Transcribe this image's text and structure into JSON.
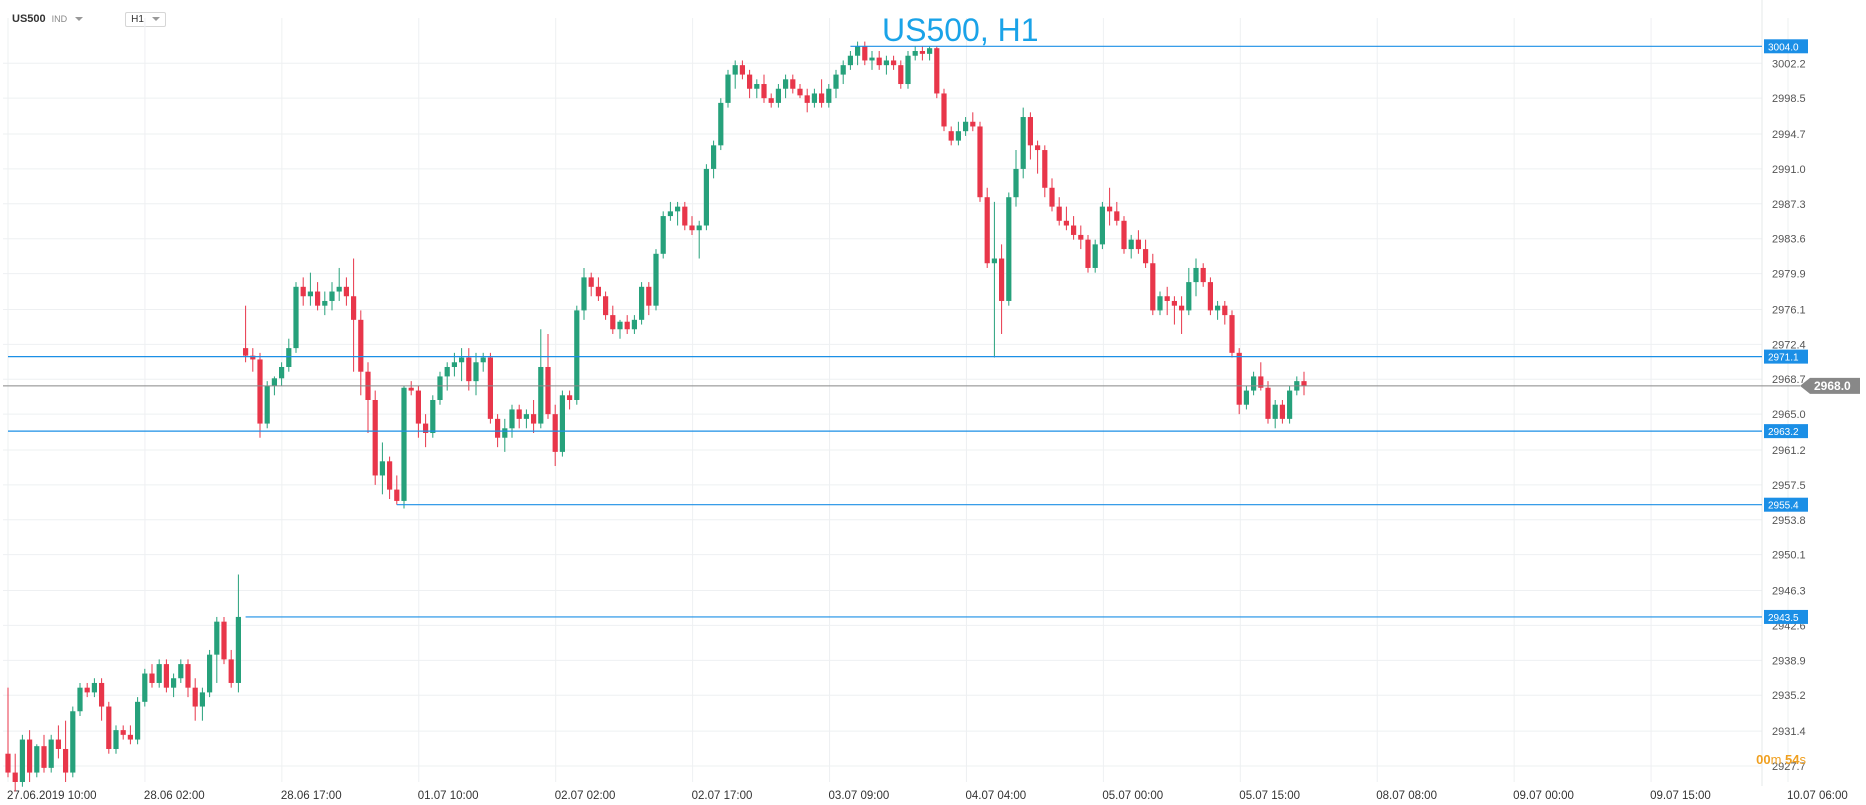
{
  "toolbar": {
    "symbol": "US500",
    "tag": "IND",
    "timeframe": "H1"
  },
  "title": "US500, H1",
  "timer": {
    "minutes": "00",
    "m_unit": "m",
    "seconds": "54",
    "s_unit": "s"
  },
  "colors": {
    "up": "#26a17b",
    "down": "#e8364a",
    "hline": "#1b8fe6",
    "grid": "#eef0f2",
    "axis_text": "#555555",
    "current": "#888888"
  },
  "chart_data": {
    "type": "candlestick",
    "title": "US500, H1",
    "ylim": [
      2926.0,
      3007.0
    ],
    "y_ticks": [
      3002.2,
      2998.5,
      2994.7,
      2991.0,
      2987.3,
      2983.6,
      2979.9,
      2976.1,
      2972.4,
      2968.7,
      2965.0,
      2961.2,
      2957.5,
      2953.8,
      2950.1,
      2946.3,
      2942.6,
      2938.9,
      2935.2,
      2931.4,
      2927.7
    ],
    "x_ticks": [
      "27.06.2019  10:00",
      "28.06  02:00",
      "28.06  17:00",
      "01.07  10:00",
      "02.07  02:00",
      "02.07  17:00",
      "03.07  09:00",
      "04.07  04:00",
      "05.07  00:00",
      "05.07  15:00",
      "08.07  08:00",
      "09.07  00:00",
      "09.07  15:00",
      "10.07  06:00"
    ],
    "h_lines": [
      {
        "value": 3004.0,
        "label": "3004.0",
        "start_index": 117
      },
      {
        "value": 2971.1,
        "label": "2971.1",
        "start_index": 0
      },
      {
        "value": 2963.2,
        "label": "2963.2",
        "start_index": 0
      },
      {
        "value": 2955.4,
        "label": "2955.4",
        "start_index": 54
      },
      {
        "value": 2943.5,
        "label": "2943.5",
        "start_index": 33
      }
    ],
    "current_price": {
      "value": 2968.0,
      "label": "2968.0"
    },
    "candles": [
      [
        2929.0,
        2936.0,
        2926.5,
        2927.0
      ],
      [
        2927.0,
        2929.0,
        2925.0,
        2926.0
      ],
      [
        2926.0,
        2931.0,
        2925.5,
        2930.5
      ],
      [
        2930.5,
        2931.5,
        2926.0,
        2927.0
      ],
      [
        2927.0,
        2930.0,
        2926.5,
        2929.8
      ],
      [
        2929.8,
        2931.0,
        2927.0,
        2927.5
      ],
      [
        2927.5,
        2931.0,
        2927.0,
        2930.5
      ],
      [
        2930.5,
        2932.0,
        2928.5,
        2929.5
      ],
      [
        2929.5,
        2932.5,
        2926.0,
        2927.0
      ],
      [
        2927.0,
        2934.0,
        2926.5,
        2933.5
      ],
      [
        2933.5,
        2936.5,
        2933.0,
        2936.0
      ],
      [
        2936.0,
        2936.5,
        2935.0,
        2935.5
      ],
      [
        2935.5,
        2937.0,
        2935.0,
        2936.5
      ],
      [
        2936.5,
        2937.0,
        2932.5,
        2934.0
      ],
      [
        2934.0,
        2934.5,
        2929.0,
        2929.5
      ],
      [
        2929.5,
        2932.0,
        2929.0,
        2931.5
      ],
      [
        2931.5,
        2932.0,
        2930.5,
        2931.0
      ],
      [
        2931.0,
        2932.0,
        2930.0,
        2930.5
      ],
      [
        2930.5,
        2935.0,
        2930.0,
        2934.5
      ],
      [
        2934.5,
        2938.0,
        2934.0,
        2937.5
      ],
      [
        2937.5,
        2938.5,
        2936.0,
        2936.5
      ],
      [
        2936.5,
        2939.0,
        2936.0,
        2938.5
      ],
      [
        2938.5,
        2939.0,
        2935.5,
        2936.0
      ],
      [
        2936.0,
        2937.5,
        2935.0,
        2937.0
      ],
      [
        2937.0,
        2939.0,
        2936.5,
        2938.5
      ],
      [
        2938.5,
        2939.0,
        2935.0,
        2936.0
      ],
      [
        2936.0,
        2937.0,
        2932.5,
        2934.0
      ],
      [
        2934.0,
        2936.0,
        2932.5,
        2935.5
      ],
      [
        2935.5,
        2940.0,
        2935.0,
        2939.5
      ],
      [
        2939.5,
        2943.5,
        2936.5,
        2943.0
      ],
      [
        2943.0,
        2943.5,
        2938.5,
        2939.0
      ],
      [
        2939.0,
        2940.0,
        2936.0,
        2936.5
      ],
      [
        2936.5,
        2948.0,
        2935.5,
        2943.5
      ],
      [
        2972.0,
        2976.5,
        2970.5,
        2971.2
      ],
      [
        2971.2,
        2972.0,
        2969.5,
        2970.8
      ],
      [
        2970.8,
        2971.5,
        2962.5,
        2964.0
      ],
      [
        2964.0,
        2968.5,
        2963.5,
        2968.0
      ],
      [
        2968.0,
        2969.0,
        2967.0,
        2968.8
      ],
      [
        2968.8,
        2970.5,
        2968.0,
        2970.0
      ],
      [
        2970.0,
        2973.0,
        2969.5,
        2972.0
      ],
      [
        2972.0,
        2979.0,
        2971.5,
        2978.5
      ],
      [
        2978.5,
        2979.5,
        2976.5,
        2977.5
      ],
      [
        2977.5,
        2980.0,
        2976.5,
        2978.0
      ],
      [
        2978.0,
        2979.0,
        2976.0,
        2976.5
      ],
      [
        2976.5,
        2978.0,
        2975.5,
        2977.0
      ],
      [
        2977.0,
        2979.0,
        2976.0,
        2978.0
      ],
      [
        2978.0,
        2980.5,
        2977.0,
        2978.5
      ],
      [
        2978.5,
        2979.5,
        2976.5,
        2977.5
      ],
      [
        2977.5,
        2981.5,
        2969.5,
        2975.0
      ],
      [
        2975.0,
        2976.0,
        2967.0,
        2969.5
      ],
      [
        2969.5,
        2970.5,
        2963.0,
        2966.5
      ],
      [
        2966.5,
        2967.5,
        2957.5,
        2958.5
      ],
      [
        2958.5,
        2962.0,
        2956.5,
        2960.0
      ],
      [
        2960.0,
        2960.5,
        2956.0,
        2957.0
      ],
      [
        2957.0,
        2958.5,
        2955.4,
        2955.8
      ],
      [
        2955.8,
        2968.0,
        2955.0,
        2967.8
      ],
      [
        2967.8,
        2968.5,
        2967.0,
        2967.5
      ],
      [
        2967.5,
        2968.0,
        2962.5,
        2964.0
      ],
      [
        2964.0,
        2965.0,
        2961.5,
        2963.0
      ],
      [
        2963.0,
        2967.0,
        2962.5,
        2966.5
      ],
      [
        2966.5,
        2969.5,
        2966.0,
        2969.0
      ],
      [
        2969.0,
        2970.5,
        2967.5,
        2970.0
      ],
      [
        2970.0,
        2971.5,
        2969.0,
        2970.5
      ],
      [
        2970.5,
        2972.0,
        2968.5,
        2971.0
      ],
      [
        2971.0,
        2972.0,
        2967.5,
        2968.5
      ],
      [
        2968.5,
        2971.5,
        2967.0,
        2970.5
      ],
      [
        2970.5,
        2971.5,
        2969.5,
        2971.0
      ],
      [
        2971.0,
        2971.5,
        2964.0,
        2964.5
      ],
      [
        2964.5,
        2965.0,
        2961.5,
        2962.5
      ],
      [
        2962.5,
        2964.5,
        2961.0,
        2963.5
      ],
      [
        2963.5,
        2966.0,
        2962.5,
        2965.5
      ],
      [
        2965.5,
        2966.0,
        2963.5,
        2964.5
      ],
      [
        2964.5,
        2965.5,
        2963.5,
        2965.0
      ],
      [
        2965.0,
        2966.5,
        2963.0,
        2964.0
      ],
      [
        2964.0,
        2974.0,
        2963.5,
        2970.0
      ],
      [
        2970.0,
        2973.5,
        2964.5,
        2965.0
      ],
      [
        2965.0,
        2966.0,
        2959.5,
        2961.0
      ],
      [
        2961.0,
        2967.5,
        2960.5,
        2967.0
      ],
      [
        2967.0,
        2967.5,
        2965.5,
        2966.5
      ],
      [
        2966.5,
        2976.5,
        2966.0,
        2976.0
      ],
      [
        2976.0,
        2980.5,
        2975.0,
        2979.5
      ],
      [
        2979.5,
        2980.0,
        2977.5,
        2978.5
      ],
      [
        2978.5,
        2979.5,
        2977.0,
        2977.5
      ],
      [
        2977.5,
        2978.0,
        2975.0,
        2975.5
      ],
      [
        2975.5,
        2976.5,
        2973.5,
        2974.0
      ],
      [
        2974.0,
        2975.0,
        2973.0,
        2974.8
      ],
      [
        2974.8,
        2975.5,
        2973.5,
        2974.0
      ],
      [
        2974.0,
        2975.5,
        2973.5,
        2975.0
      ],
      [
        2975.0,
        2979.0,
        2974.5,
        2978.5
      ],
      [
        2978.5,
        2979.0,
        2975.5,
        2976.5
      ],
      [
        2976.5,
        2982.5,
        2976.0,
        2982.0
      ],
      [
        2982.0,
        2986.5,
        2981.5,
        2986.0
      ],
      [
        2986.0,
        2987.5,
        2985.5,
        2986.5
      ],
      [
        2986.5,
        2987.5,
        2985.0,
        2987.0
      ],
      [
        2987.0,
        2987.5,
        2984.5,
        2985.0
      ],
      [
        2985.0,
        2986.0,
        2984.0,
        2984.5
      ],
      [
        2984.5,
        2985.5,
        2981.5,
        2985.0
      ],
      [
        2985.0,
        2991.5,
        2984.5,
        2991.0
      ],
      [
        2991.0,
        2994.0,
        2990.0,
        2993.5
      ],
      [
        2993.5,
        2998.5,
        2993.0,
        2998.0
      ],
      [
        2998.0,
        3001.5,
        2997.5,
        3001.0
      ],
      [
        3001.0,
        3002.5,
        2999.5,
        3002.0
      ],
      [
        3002.0,
        3002.5,
        3000.5,
        3001.0
      ],
      [
        3001.0,
        3001.5,
        2998.5,
        2999.5
      ],
      [
        2999.5,
        3000.5,
        2998.5,
        3000.0
      ],
      [
        3000.0,
        3001.0,
        2998.0,
        2998.5
      ],
      [
        2998.5,
        2999.0,
        2997.5,
        2998.0
      ],
      [
        2998.0,
        3000.0,
        2997.5,
        2999.5
      ],
      [
        2999.5,
        3001.0,
        2998.5,
        3000.5
      ],
      [
        3000.5,
        3001.0,
        2999.0,
        2999.5
      ],
      [
        2999.5,
        3000.0,
        2998.5,
        2998.8
      ],
      [
        2998.8,
        2999.5,
        2997.0,
        2998.0
      ],
      [
        2998.0,
        2999.5,
        2997.5,
        2999.0
      ],
      [
        2999.0,
        3000.5,
        2997.5,
        2998.0
      ],
      [
        2998.0,
        3000.0,
        2997.5,
        2999.5
      ],
      [
        2999.5,
        3001.5,
        2998.5,
        3001.0
      ],
      [
        3001.0,
        3002.5,
        3000.0,
        3002.0
      ],
      [
        3002.0,
        3003.5,
        3001.5,
        3003.0
      ],
      [
        3003.0,
        3004.5,
        3002.0,
        3004.0
      ],
      [
        3004.0,
        3004.5,
        3002.0,
        3002.5
      ],
      [
        3002.5,
        3003.5,
        3001.5,
        3002.8
      ],
      [
        3002.8,
        3003.5,
        3001.5,
        3002.0
      ],
      [
        3002.0,
        3003.0,
        3001.0,
        3002.5
      ],
      [
        3002.5,
        3003.0,
        3001.5,
        3002.0
      ],
      [
        3002.0,
        3002.5,
        2999.5,
        3000.0
      ],
      [
        3000.0,
        3003.5,
        2999.5,
        3003.0
      ],
      [
        3003.0,
        3004.0,
        3002.5,
        3003.5
      ],
      [
        3003.5,
        3004.0,
        3002.5,
        3003.2
      ],
      [
        3003.2,
        3004.0,
        3002.5,
        3003.8
      ],
      [
        3003.8,
        3004.0,
        2998.5,
        2999.0
      ],
      [
        2999.0,
        2999.5,
        2995.0,
        2995.5
      ],
      [
        2995.0,
        2995.5,
        2993.5,
        2994.0
      ],
      [
        2994.0,
        2996.0,
        2993.5,
        2995.0
      ],
      [
        2995.0,
        2996.5,
        2994.5,
        2996.0
      ],
      [
        2996.0,
        2997.0,
        2995.0,
        2995.5
      ],
      [
        2995.5,
        2996.0,
        2987.5,
        2988.0
      ],
      [
        2988.0,
        2989.0,
        2980.5,
        2981.0
      ],
      [
        2981.0,
        2987.5,
        2971.0,
        2981.5
      ],
      [
        2981.5,
        2983.0,
        2973.5,
        2977.0
      ],
      [
        2977.0,
        2988.5,
        2976.5,
        2988.0
      ],
      [
        2988.0,
        2993.0,
        2987.0,
        2991.0
      ],
      [
        2991.0,
        2997.5,
        2990.0,
        2996.5
      ],
      [
        2996.5,
        2997.0,
        2992.0,
        2993.5
      ],
      [
        2993.5,
        2994.0,
        2990.5,
        2993.0
      ],
      [
        2993.0,
        2993.5,
        2988.0,
        2989.0
      ],
      [
        2989.0,
        2990.0,
        2986.5,
        2987.0
      ],
      [
        2987.0,
        2988.0,
        2985.0,
        2985.5
      ],
      [
        2985.5,
        2987.0,
        2984.5,
        2985.0
      ],
      [
        2985.0,
        2986.0,
        2983.5,
        2984.0
      ],
      [
        2984.0,
        2985.0,
        2982.5,
        2983.5
      ],
      [
        2983.5,
        2984.0,
        2980.0,
        2980.5
      ],
      [
        2980.5,
        2983.5,
        2980.0,
        2983.0
      ],
      [
        2983.0,
        2987.5,
        2982.5,
        2987.0
      ],
      [
        2987.0,
        2989.0,
        2985.0,
        2986.5
      ],
      [
        2986.5,
        2987.5,
        2985.0,
        2985.5
      ],
      [
        2985.5,
        2986.0,
        2982.0,
        2982.5
      ],
      [
        2982.5,
        2984.0,
        2981.5,
        2983.5
      ],
      [
        2983.5,
        2984.5,
        2982.0,
        2982.5
      ],
      [
        2982.5,
        2983.5,
        2980.5,
        2981.0
      ],
      [
        2981.0,
        2982.0,
        2975.5,
        2976.0
      ],
      [
        2976.0,
        2978.0,
        2975.5,
        2977.5
      ],
      [
        2977.5,
        2978.5,
        2975.5,
        2977.0
      ],
      [
        2977.0,
        2977.5,
        2974.5,
        2976.5
      ],
      [
        2976.5,
        2977.5,
        2973.5,
        2976.0
      ],
      [
        2976.0,
        2980.5,
        2975.5,
        2979.0
      ],
      [
        2979.0,
        2981.5,
        2977.5,
        2980.5
      ],
      [
        2980.5,
        2981.0,
        2978.5,
        2979.0
      ],
      [
        2979.0,
        2979.5,
        2975.5,
        2976.0
      ],
      [
        2976.0,
        2977.0,
        2975.0,
        2976.5
      ],
      [
        2976.5,
        2977.0,
        2974.5,
        2975.5
      ],
      [
        2975.5,
        2976.0,
        2971.0,
        2971.5
      ],
      [
        2971.5,
        2972.0,
        2965.0,
        2966.0
      ],
      [
        2966.0,
        2968.0,
        2965.5,
        2967.5
      ],
      [
        2967.5,
        2969.5,
        2967.0,
        2969.0
      ],
      [
        2969.0,
        2970.5,
        2967.5,
        2967.8
      ],
      [
        2967.8,
        2968.5,
        2964.0,
        2964.5
      ],
      [
        2964.5,
        2966.5,
        2963.5,
        2966.0
      ],
      [
        2966.0,
        2966.5,
        2964.0,
        2964.5
      ],
      [
        2964.5,
        2968.0,
        2964.0,
        2967.5
      ],
      [
        2967.5,
        2969.0,
        2967.0,
        2968.5
      ],
      [
        2968.5,
        2969.5,
        2967.0,
        2968.0
      ]
    ]
  }
}
